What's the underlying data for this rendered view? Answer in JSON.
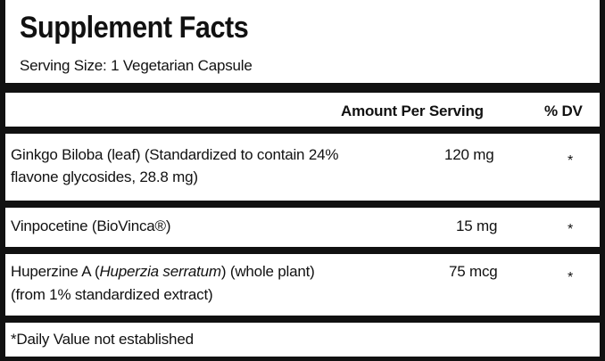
{
  "title": "Supplement Facts",
  "serving_size": "Serving Size: 1 Vegetarian Capsule",
  "header": {
    "amount": "Amount Per Serving",
    "dv": "% DV"
  },
  "rows": [
    {
      "name_lines": [
        "Ginkgo Biloba (leaf) (Standardized to contain 24%",
        "flavone glycosides, 28.8 mg)"
      ],
      "amount": "120 mg",
      "dv": "*"
    },
    {
      "name_lines": [
        "Vinpocetine (BioVinca®)"
      ],
      "amount": "15 mg",
      "dv": "*"
    },
    {
      "name_before": "Huperzine A (",
      "name_italic": "Huperzia serratum",
      "name_after": ") (whole plant)",
      "name_line2": "(from 1% standardized extract)",
      "amount": "75 mcg",
      "dv": "*"
    }
  ],
  "footnote": "*Daily Value not established"
}
